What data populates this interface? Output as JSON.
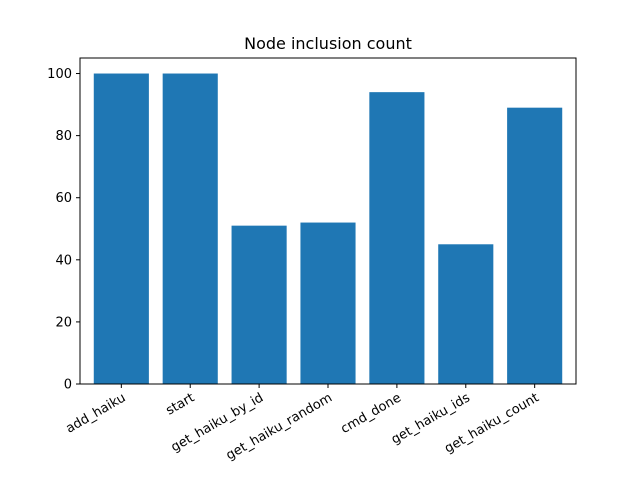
{
  "chart_data": {
    "type": "bar",
    "title": "Node inclusion count",
    "xlabel": "",
    "ylabel": "",
    "categories": [
      "add_haiku",
      "start",
      "get_haiku_by_id",
      "get_haiku_random",
      "cmd_done",
      "get_haiku_ids",
      "get_haiku_count"
    ],
    "values": [
      100,
      100,
      51,
      52,
      94,
      45,
      89
    ],
    "ylim": [
      0,
      105
    ],
    "yticks": [
      0,
      20,
      40,
      60,
      80,
      100
    ],
    "grid": false,
    "legend": "none",
    "bar_color": "#1f77b4",
    "x_tick_rotation": "30 degrees, right-aligned"
  }
}
